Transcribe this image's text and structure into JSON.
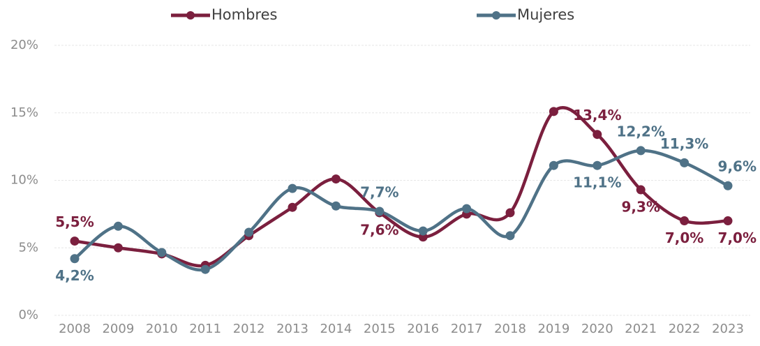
{
  "chart_data": {
    "type": "line",
    "categories": [
      "2008",
      "2009",
      "2010",
      "2011",
      "2012",
      "2013",
      "2014",
      "2015",
      "2016",
      "2017",
      "2018",
      "2019",
      "2020",
      "2021",
      "2022",
      "2023"
    ],
    "series": [
      {
        "name": "Hombres",
        "color": "#7b1f3e",
        "values": [
          5.5,
          5.0,
          4.55,
          3.7,
          5.9,
          8.0,
          10.1,
          7.6,
          5.8,
          7.5,
          7.6,
          15.1,
          13.4,
          9.3,
          7.0,
          7.0
        ],
        "value_labels": [
          "5,5%",
          null,
          null,
          null,
          null,
          null,
          null,
          "7,6%",
          null,
          null,
          null,
          null,
          "13,4%",
          "9,3%",
          "7,0%",
          "7,0%"
        ]
      },
      {
        "name": "Mujeres",
        "color": "#4f7287",
        "values": [
          4.2,
          6.6,
          4.65,
          3.4,
          6.15,
          9.4,
          8.1,
          7.7,
          6.25,
          7.9,
          5.9,
          11.1,
          11.1,
          12.2,
          11.3,
          9.6
        ],
        "value_labels": [
          "4,2%",
          null,
          null,
          null,
          null,
          null,
          null,
          "7,7%",
          null,
          null,
          null,
          null,
          "11,1%",
          "12,2%",
          "11,3%",
          "9,6%"
        ]
      }
    ],
    "ylim": [
      0,
      20
    ],
    "yticks": [
      {
        "value": 0,
        "label": "0%"
      },
      {
        "value": 5,
        "label": "5%"
      },
      {
        "value": 10,
        "label": "10%"
      },
      {
        "value": 15,
        "label": "15%"
      },
      {
        "value": 20,
        "label": "20%"
      }
    ],
    "grid": true,
    "legend": "top"
  }
}
